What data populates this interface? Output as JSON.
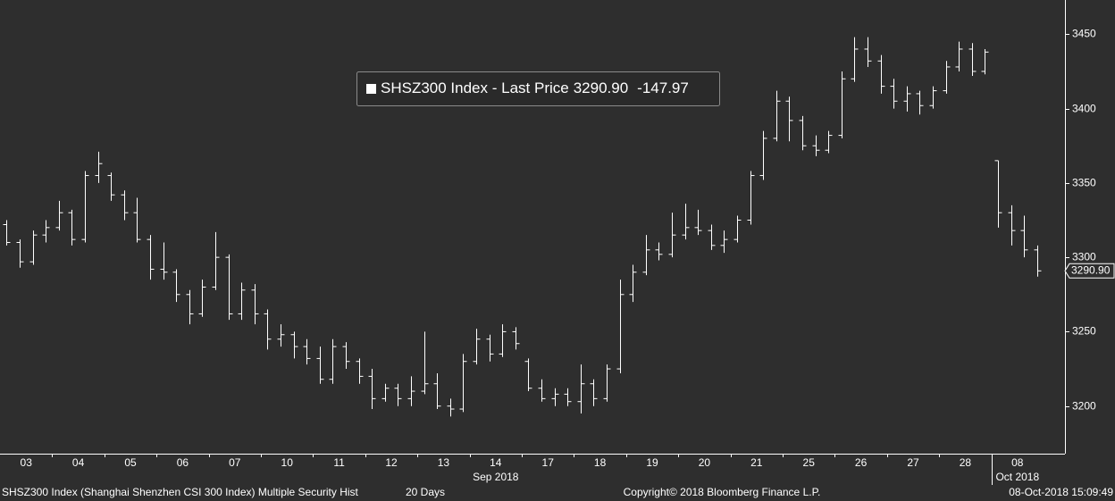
{
  "chart_data": {
    "type": "ohlc",
    "categories": [
      "03",
      "04",
      "05",
      "06",
      "07",
      "10",
      "11",
      "12",
      "13",
      "14",
      "17",
      "18",
      "19",
      "20",
      "21",
      "25",
      "26",
      "27",
      "28",
      "08"
    ],
    "x_groups": [
      "Sep 2018",
      "Oct 2018"
    ],
    "series": [
      {
        "name": "SHSZ300 Index - Last Price",
        "color": "#ffffff",
        "ohlc": [
          [
            [
              3322,
              3325,
              3308,
              3310
            ],
            [
              3310,
              3312,
              3293,
              3297
            ],
            [
              3297,
              3318,
              3295,
              3315
            ],
            [
              3315,
              3325,
              3310,
              3320
            ]
          ],
          [
            [
              3320,
              3338,
              3318,
              3330
            ],
            [
              3330,
              3332,
              3308,
              3312
            ],
            [
              3312,
              3358,
              3310,
              3355
            ],
            [
              3355,
              3371,
              3350,
              3363
            ]
          ],
          [
            [
              3355,
              3357,
              3338,
              3342
            ],
            [
              3342,
              3345,
              3325,
              3330
            ],
            [
              3330,
              3340,
              3310,
              3312
            ],
            [
              3312,
              3315,
              3285,
              3292
            ]
          ],
          [
            [
              3292,
              3310,
              3285,
              3290
            ],
            [
              3290,
              3292,
              3270,
              3275
            ],
            [
              3275,
              3278,
              3255,
              3262
            ],
            [
              3262,
              3285,
              3260,
              3280
            ]
          ],
          [
            [
              3280,
              3317,
              3278,
              3300
            ],
            [
              3300,
              3302,
              3258,
              3262
            ],
            [
              3262,
              3283,
              3258,
              3278
            ],
            [
              3278,
              3282,
              3255,
              3262
            ]
          ],
          [
            [
              3262,
              3265,
              3238,
              3245
            ],
            [
              3245,
              3255,
              3240,
              3248
            ],
            [
              3248,
              3250,
              3232,
              3240
            ],
            [
              3240,
              3245,
              3228,
              3232
            ]
          ],
          [
            [
              3232,
              3240,
              3215,
              3218
            ],
            [
              3218,
              3245,
              3215,
              3240
            ],
            [
              3240,
              3243,
              3225,
              3230
            ],
            [
              3230,
              3232,
              3215,
              3220
            ]
          ],
          [
            [
              3220,
              3225,
              3198,
              3205
            ],
            [
              3205,
              3215,
              3203,
              3212
            ],
            [
              3212,
              3215,
              3200,
              3205
            ],
            [
              3205,
              3220,
              3200,
              3210
            ]
          ],
          [
            [
              3210,
              3250,
              3208,
              3215
            ],
            [
              3215,
              3222,
              3198,
              3200
            ],
            [
              3200,
              3205,
              3193,
              3198
            ],
            [
              3198,
              3235,
              3196,
              3230
            ]
          ],
          [
            [
              3230,
              3252,
              3228,
              3245
            ],
            [
              3245,
              3248,
              3230,
              3235
            ],
            [
              3235,
              3255,
              3233,
              3250
            ],
            [
              3250,
              3253,
              3238,
              3242
            ]
          ],
          [
            [
              3230,
              3232,
              3210,
              3212
            ],
            [
              3212,
              3218,
              3203,
              3205
            ],
            [
              3205,
              3212,
              3200,
              3208
            ],
            [
              3208,
              3212,
              3200,
              3203
            ]
          ],
          [
            [
              3203,
              3228,
              3195,
              3215
            ],
            [
              3215,
              3218,
              3200,
              3205
            ],
            [
              3205,
              3228,
              3203,
              3225
            ],
            [
              3225,
              3285,
              3222,
              3275
            ]
          ],
          [
            [
              3275,
              3295,
              3270,
              3290
            ],
            [
              3290,
              3315,
              3288,
              3305
            ],
            [
              3305,
              3310,
              3298,
              3302
            ],
            [
              3302,
              3330,
              3300,
              3315
            ]
          ],
          [
            [
              3315,
              3336,
              3312,
              3320
            ],
            [
              3320,
              3332,
              3315,
              3318
            ],
            [
              3318,
              3322,
              3305,
              3308
            ],
            [
              3308,
              3318,
              3303,
              3312
            ]
          ],
          [
            [
              3312,
              3328,
              3310,
              3325
            ],
            [
              3325,
              3358,
              3322,
              3355
            ],
            [
              3355,
              3385,
              3352,
              3380
            ],
            [
              3380,
              3412,
              3378,
              3405
            ]
          ],
          [
            [
              3405,
              3408,
              3378,
              3392
            ],
            [
              3392,
              3395,
              3372,
              3375
            ],
            [
              3375,
              3382,
              3368,
              3372
            ],
            [
              3372,
              3385,
              3370,
              3382
            ]
          ],
          [
            [
              3382,
              3425,
              3380,
              3420
            ],
            [
              3420,
              3448,
              3418,
              3440
            ],
            [
              3440,
              3448,
              3428,
              3432
            ],
            [
              3432,
              3436,
              3410,
              3415
            ]
          ],
          [
            [
              3415,
              3420,
              3400,
              3405
            ],
            [
              3405,
              3415,
              3398,
              3410
            ],
            [
              3410,
              3412,
              3396,
              3402
            ],
            [
              3402,
              3415,
              3400,
              3412
            ]
          ],
          [
            [
              3412,
              3432,
              3410,
              3428
            ],
            [
              3428,
              3445,
              3425,
              3440
            ],
            [
              3440,
              3444,
              3422,
              3425
            ],
            [
              3425,
              3440,
              3423,
              3438
            ]
          ],
          [
            [
              3365,
              3365,
              3320,
              3330
            ],
            [
              3330,
              3335,
              3308,
              3318
            ],
            [
              3318,
              3328,
              3300,
              3305
            ],
            [
              3305,
              3308,
              3287,
              3290.9
            ]
          ]
        ]
      }
    ],
    "last_value": {
      "value": 3290.9,
      "label": "3290.90"
    },
    "change": -147.97,
    "ylim": [
      3168,
      3473
    ],
    "yticks": [
      3200,
      3250,
      3300,
      3350,
      3400,
      3450
    ],
    "grid": false,
    "footer": {
      "left": "SHSZ300 Index (Shanghai Shenzhen CSI 300 Index) Multiple Security Hist",
      "period": "20 Days",
      "center": "Copyright© 2018 Bloomberg Finance L.P.",
      "right": "08-Oct-2018 15:09:49"
    }
  }
}
